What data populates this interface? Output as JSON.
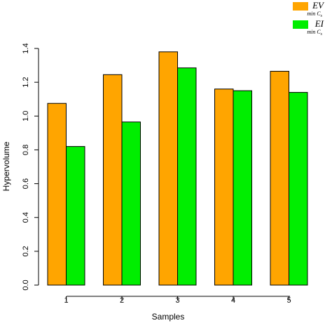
{
  "chart_data": {
    "type": "bar",
    "title": "",
    "xlabel": "Samples",
    "ylabel": "Hypervolume",
    "categories": [
      "1",
      "2",
      "3",
      "4",
      "5"
    ],
    "ylim": [
      0,
      1.4
    ],
    "yticks": [
      "0.0",
      "0.2",
      "0.4",
      "0.6",
      "0.8",
      "1.0",
      "1.2",
      "1.4"
    ],
    "grid": false,
    "legend_position": "top-right",
    "series": [
      {
        "name": "EV",
        "subscript": "min C",
        "subscript2": "s",
        "color": "#FFA500",
        "values": [
          1.075,
          1.245,
          1.38,
          1.16,
          1.265
        ]
      },
      {
        "name": "EI",
        "subscript": "min C",
        "subscript2": "s",
        "color": "#00EE00",
        "values": [
          0.82,
          0.965,
          1.285,
          1.15,
          1.14
        ]
      }
    ]
  }
}
